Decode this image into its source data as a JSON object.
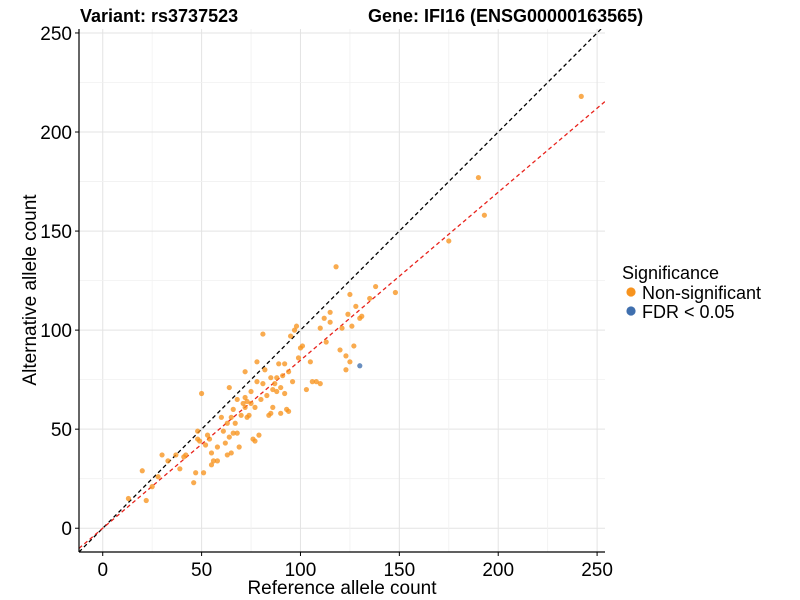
{
  "chart_data": {
    "type": "scatter",
    "title_left": "Variant: rs3737523",
    "title_right": "Gene: IFI16 (ENSG00000163565)",
    "xlabel": "Reference allele count",
    "ylabel": "Alternative allele count",
    "xlim": [
      -12,
      254
    ],
    "ylim": [
      -12,
      252
    ],
    "xticks": [
      0,
      50,
      100,
      150,
      200,
      250
    ],
    "yticks": [
      0,
      50,
      100,
      150,
      200,
      250
    ],
    "grid": true,
    "legend": {
      "title": "Significance",
      "placement": "right",
      "entries": [
        {
          "label": "Non-significant",
          "color": "#F7931E"
        },
        {
          "label": "FDR < 0.05",
          "color": "#3F6FAE"
        }
      ]
    },
    "reference_lines": [
      {
        "name": "identity",
        "slope": 1,
        "intercept": 0,
        "color": "#000000",
        "style": "dashed"
      },
      {
        "name": "fit",
        "slope": 0.848,
        "intercept": 0,
        "color": "#E8221B",
        "style": "dashed"
      }
    ],
    "series": [
      {
        "legend_entry": "Non-significant",
        "color": "#F7931E",
        "points": [
          [
            13,
            15
          ],
          [
            20,
            29
          ],
          [
            22,
            14
          ],
          [
            25,
            21
          ],
          [
            28,
            26
          ],
          [
            30,
            37
          ],
          [
            33,
            34
          ],
          [
            37,
            37
          ],
          [
            39,
            30
          ],
          [
            41,
            36
          ],
          [
            42,
            37
          ],
          [
            46,
            23
          ],
          [
            47,
            28
          ],
          [
            48,
            49
          ],
          [
            48,
            45
          ],
          [
            49,
            44
          ],
          [
            50,
            68
          ],
          [
            51,
            28
          ],
          [
            52,
            42
          ],
          [
            53,
            47
          ],
          [
            54,
            45
          ],
          [
            55,
            32
          ],
          [
            55,
            38
          ],
          [
            56,
            34
          ],
          [
            58,
            41
          ],
          [
            58,
            34
          ],
          [
            60,
            56
          ],
          [
            61,
            49
          ],
          [
            62,
            43
          ],
          [
            63,
            37
          ],
          [
            63,
            53
          ],
          [
            64,
            46
          ],
          [
            64,
            71
          ],
          [
            65,
            38
          ],
          [
            65,
            56
          ],
          [
            66,
            48
          ],
          [
            66,
            60
          ],
          [
            67,
            53
          ],
          [
            68,
            48
          ],
          [
            68,
            65
          ],
          [
            69,
            41
          ],
          [
            70,
            57
          ],
          [
            71,
            63
          ],
          [
            72,
            61
          ],
          [
            72,
            66
          ],
          [
            72,
            79
          ],
          [
            73,
            56
          ],
          [
            73,
            64
          ],
          [
            74,
            57
          ],
          [
            75,
            63
          ],
          [
            75,
            69
          ],
          [
            76,
            45
          ],
          [
            77,
            44
          ],
          [
            77,
            61
          ],
          [
            78,
            74
          ],
          [
            78,
            84
          ],
          [
            79,
            47
          ],
          [
            80,
            65
          ],
          [
            81,
            98
          ],
          [
            81,
            73
          ],
          [
            82,
            80
          ],
          [
            83,
            67
          ],
          [
            84,
            57
          ],
          [
            85,
            76
          ],
          [
            85,
            58
          ],
          [
            86,
            70
          ],
          [
            86,
            61
          ],
          [
            87,
            73
          ],
          [
            88,
            76
          ],
          [
            88,
            69
          ],
          [
            89,
            83
          ],
          [
            90,
            71
          ],
          [
            90,
            58
          ],
          [
            91,
            77
          ],
          [
            92,
            83
          ],
          [
            92,
            68
          ],
          [
            93,
            60
          ],
          [
            94,
            79
          ],
          [
            94,
            59
          ],
          [
            95,
            97
          ],
          [
            96,
            74
          ],
          [
            97,
            100
          ],
          [
            98,
            102
          ],
          [
            99,
            86
          ],
          [
            100,
            91
          ],
          [
            101,
            92
          ],
          [
            103,
            70
          ],
          [
            105,
            84
          ],
          [
            106,
            74
          ],
          [
            108,
            74
          ],
          [
            110,
            73
          ],
          [
            110,
            101
          ],
          [
            112,
            106
          ],
          [
            113,
            94
          ],
          [
            115,
            104
          ],
          [
            115,
            109
          ],
          [
            118,
            132
          ],
          [
            120,
            90
          ],
          [
            121,
            101
          ],
          [
            123,
            87
          ],
          [
            123,
            80
          ],
          [
            124,
            108
          ],
          [
            125,
            84
          ],
          [
            125,
            118
          ],
          [
            126,
            102
          ],
          [
            127,
            92
          ],
          [
            128,
            112
          ],
          [
            130,
            106
          ],
          [
            131,
            107
          ],
          [
            135,
            116
          ],
          [
            138,
            122
          ],
          [
            148,
            119
          ],
          [
            175,
            145
          ],
          [
            190,
            177
          ],
          [
            193,
            158
          ],
          [
            242,
            218
          ]
        ]
      },
      {
        "legend_entry": "FDR < 0.05",
        "color": "#3F6FAE",
        "points": [
          [
            130,
            82
          ]
        ]
      }
    ]
  }
}
